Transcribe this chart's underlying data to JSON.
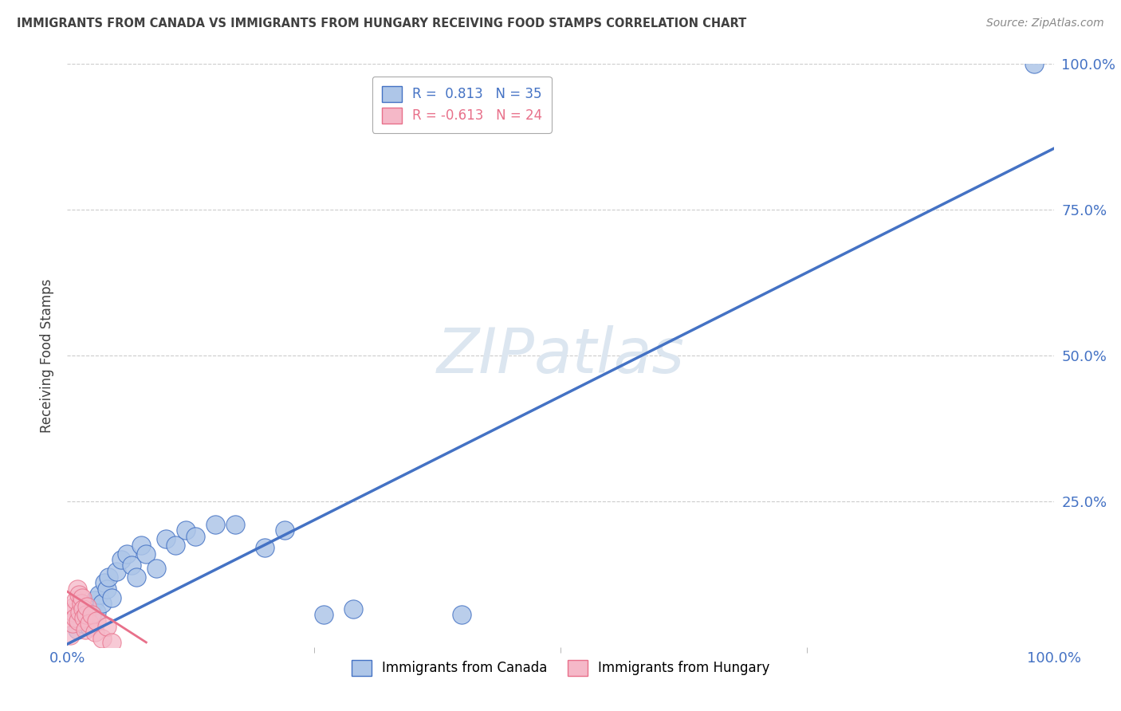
{
  "title": "IMMIGRANTS FROM CANADA VS IMMIGRANTS FROM HUNGARY RECEIVING FOOD STAMPS CORRELATION CHART",
  "source": "Source: ZipAtlas.com",
  "ylabel": "Receiving Food Stamps",
  "xlim": [
    0.0,
    1.0
  ],
  "ylim": [
    0.0,
    1.0
  ],
  "ytick_labels": [
    "25.0%",
    "50.0%",
    "75.0%",
    "100.0%"
  ],
  "ytick_positions": [
    0.25,
    0.5,
    0.75,
    1.0
  ],
  "legend_label_canada": "R =  0.813   N = 35",
  "legend_label_hungary": "R = -0.613   N = 24",
  "canada_dots": [
    [
      0.01,
      0.03
    ],
    [
      0.012,
      0.055
    ],
    [
      0.015,
      0.04
    ],
    [
      0.018,
      0.065
    ],
    [
      0.02,
      0.05
    ],
    [
      0.022,
      0.035
    ],
    [
      0.025,
      0.07
    ],
    [
      0.028,
      0.08
    ],
    [
      0.03,
      0.06
    ],
    [
      0.032,
      0.09
    ],
    [
      0.035,
      0.075
    ],
    [
      0.038,
      0.11
    ],
    [
      0.04,
      0.1
    ],
    [
      0.042,
      0.12
    ],
    [
      0.045,
      0.085
    ],
    [
      0.05,
      0.13
    ],
    [
      0.055,
      0.15
    ],
    [
      0.06,
      0.16
    ],
    [
      0.065,
      0.14
    ],
    [
      0.07,
      0.12
    ],
    [
      0.075,
      0.175
    ],
    [
      0.08,
      0.16
    ],
    [
      0.09,
      0.135
    ],
    [
      0.1,
      0.185
    ],
    [
      0.11,
      0.175
    ],
    [
      0.12,
      0.2
    ],
    [
      0.13,
      0.19
    ],
    [
      0.15,
      0.21
    ],
    [
      0.17,
      0.21
    ],
    [
      0.2,
      0.17
    ],
    [
      0.22,
      0.2
    ],
    [
      0.26,
      0.055
    ],
    [
      0.29,
      0.065
    ],
    [
      0.4,
      0.055
    ],
    [
      0.98,
      1.0
    ]
  ],
  "hungary_dots": [
    [
      0.003,
      0.02
    ],
    [
      0.005,
      0.04
    ],
    [
      0.006,
      0.06
    ],
    [
      0.007,
      0.07
    ],
    [
      0.008,
      0.05
    ],
    [
      0.009,
      0.08
    ],
    [
      0.01,
      0.1
    ],
    [
      0.011,
      0.045
    ],
    [
      0.012,
      0.09
    ],
    [
      0.013,
      0.06
    ],
    [
      0.014,
      0.075
    ],
    [
      0.015,
      0.085
    ],
    [
      0.016,
      0.065
    ],
    [
      0.017,
      0.05
    ],
    [
      0.018,
      0.03
    ],
    [
      0.019,
      0.055
    ],
    [
      0.02,
      0.07
    ],
    [
      0.022,
      0.04
    ],
    [
      0.025,
      0.055
    ],
    [
      0.028,
      0.025
    ],
    [
      0.03,
      0.045
    ],
    [
      0.035,
      0.015
    ],
    [
      0.04,
      0.035
    ],
    [
      0.045,
      0.008
    ]
  ],
  "canada_line_x": [
    0.0,
    1.0
  ],
  "canada_line_y": [
    0.005,
    0.855
  ],
  "hungary_line_x": [
    0.0,
    0.08
  ],
  "hungary_line_y": [
    0.095,
    0.008
  ],
  "blue_color": "#4472c4",
  "pink_color": "#e8708a",
  "blue_dot_color": "#aec6e8",
  "pink_dot_color": "#f5b8c8",
  "grid_color": "#cccccc",
  "title_color": "#404040",
  "watermark_text": "ZIPatlas",
  "watermark_color": "#dce6f0",
  "axis_label_color": "#4472c4",
  "background_color": "#ffffff"
}
